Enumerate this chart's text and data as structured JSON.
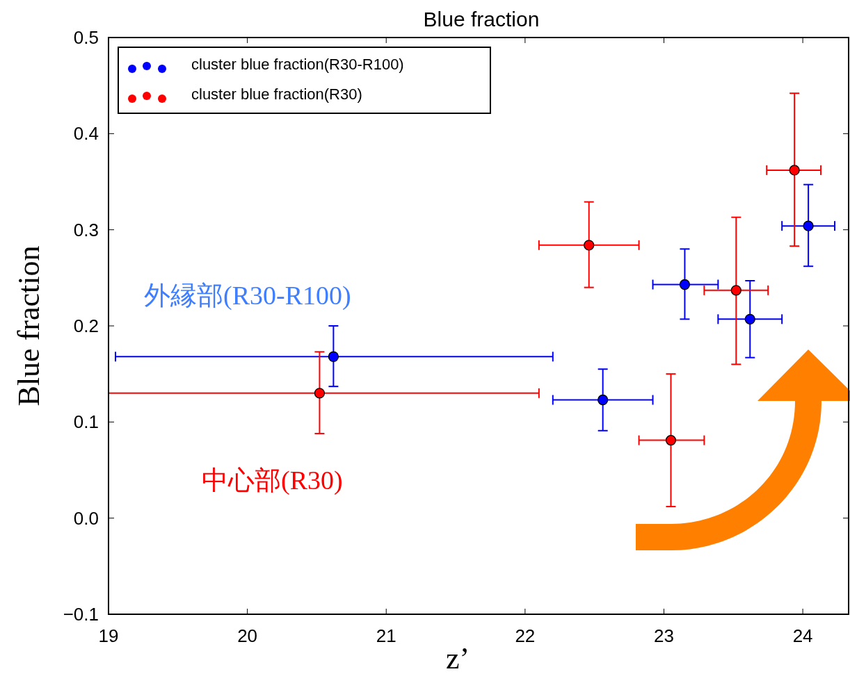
{
  "chart_data": {
    "type": "scatter",
    "title": "Blue fraction",
    "xlabel": "z’",
    "ylabel": "Blue fraction",
    "xlim": [
      19,
      24.33
    ],
    "xticks": [
      19,
      20,
      21,
      22,
      23,
      24
    ],
    "ylim": [
      -0.1,
      0.5
    ],
    "yticks": [
      {
        "value": -0.1,
        "label": "−0.1"
      },
      {
        "value": 0,
        "label": "0.0"
      },
      0.1,
      0.2,
      0.3,
      0.4,
      0.5
    ],
    "grid": false,
    "legend": "top left",
    "marker": "circle",
    "annotations": [
      "外縁部(R30-R100)",
      "中心部(R30)"
    ],
    "series": [
      {
        "name": "cluster blue fraction(R30-R100)",
        "type": "scatter",
        "color": "#0000ff",
        "x": [
          20.62,
          22.56,
          23.15,
          23.62,
          24.04
        ],
        "values": [
          0.168,
          0.123,
          0.243,
          0.207,
          0.304
        ],
        "errors": [
          [
            0.137,
            0.2
          ],
          [
            0.091,
            0.155
          ],
          [
            0.207,
            0.28
          ],
          [
            0.167,
            0.247
          ],
          [
            0.262,
            0.347
          ]
        ],
        "xerrors": [
          [
            19.05,
            22.2
          ],
          [
            22.2,
            22.92
          ],
          [
            22.92,
            23.39
          ],
          [
            23.39,
            23.85
          ],
          [
            23.85,
            24.23
          ]
        ]
      },
      {
        "name": "cluster blue fraction(R30)",
        "type": "scatter",
        "color": "#ff0000",
        "x": [
          20.52,
          22.46,
          23.05,
          23.52,
          23.94
        ],
        "values": [
          0.13,
          0.284,
          0.081,
          0.237,
          0.362
        ],
        "errors": [
          [
            0.088,
            0.173
          ],
          [
            0.24,
            0.329
          ],
          [
            0.012,
            0.15
          ],
          [
            0.16,
            0.313
          ],
          [
            0.283,
            0.442
          ]
        ],
        "xerrors": [
          [
            19.0,
            22.1
          ],
          [
            22.1,
            22.82
          ],
          [
            22.82,
            23.29
          ],
          [
            23.29,
            23.75
          ],
          [
            23.74,
            24.13
          ]
        ]
      }
    ]
  }
}
